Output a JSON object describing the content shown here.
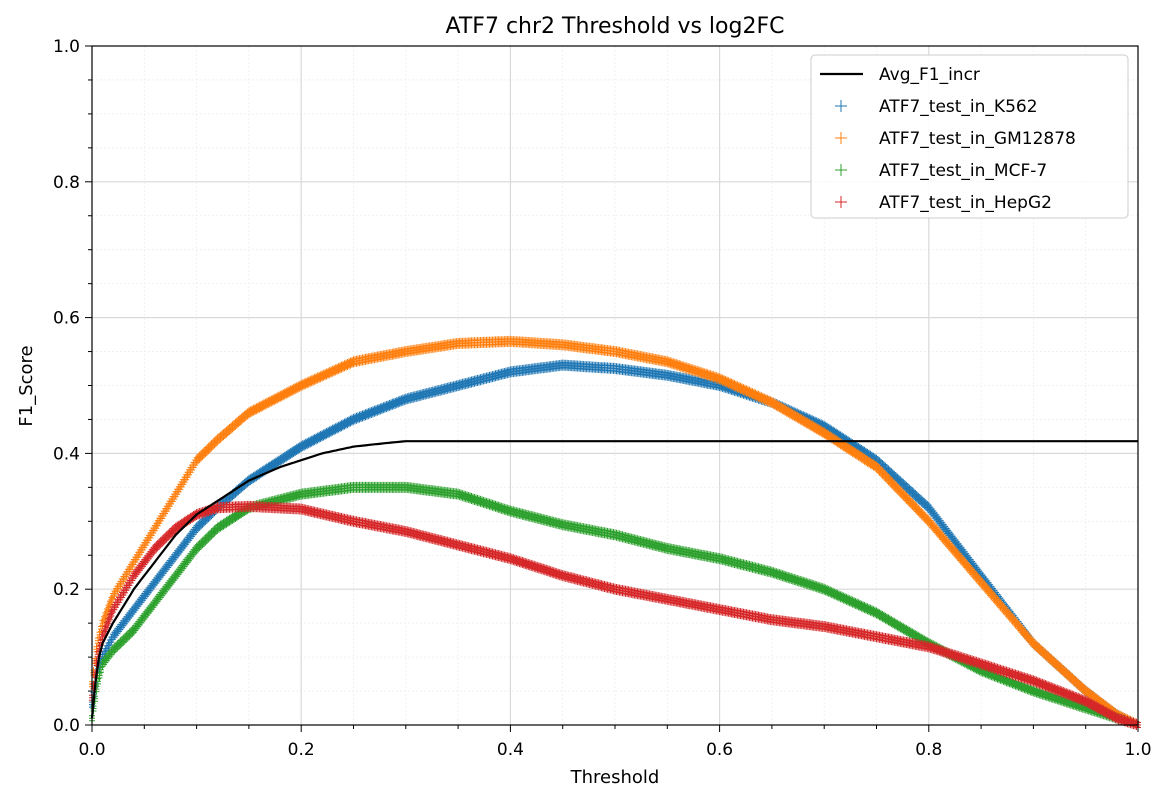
{
  "chart_data": {
    "type": "line",
    "title": "ATF7 chr2 Threshold vs log2FC",
    "xlabel": "Threshold",
    "ylabel": "F1_Score",
    "xlim": [
      0,
      1
    ],
    "ylim": [
      0,
      1
    ],
    "xticks": [
      "0.0",
      "0.2",
      "0.4",
      "0.6",
      "0.8",
      "1.0"
    ],
    "yticks": [
      "0.0",
      "0.2",
      "0.4",
      "0.6",
      "0.8",
      "1.0"
    ],
    "grid": true,
    "legend_position": "top-right",
    "series": [
      {
        "name": "Avg_F1_incr",
        "style": "line",
        "color": "#000000",
        "x": [
          0.0,
          0.005,
          0.01,
          0.02,
          0.04,
          0.06,
          0.08,
          0.1,
          0.12,
          0.15,
          0.18,
          0.2,
          0.22,
          0.25,
          0.28,
          0.3,
          0.35,
          0.4,
          0.5,
          0.6,
          0.7,
          0.8,
          0.9,
          1.0
        ],
        "y": [
          0.01,
          0.09,
          0.12,
          0.15,
          0.2,
          0.24,
          0.28,
          0.31,
          0.33,
          0.36,
          0.38,
          0.39,
          0.4,
          0.41,
          0.415,
          0.418,
          0.418,
          0.418,
          0.418,
          0.418,
          0.418,
          0.418,
          0.418,
          0.418
        ]
      },
      {
        "name": "ATF7_test_in_K562",
        "style": "markers",
        "color": "#1f77b4",
        "x": [
          0.0,
          0.005,
          0.01,
          0.02,
          0.04,
          0.06,
          0.08,
          0.1,
          0.12,
          0.15,
          0.2,
          0.25,
          0.3,
          0.35,
          0.4,
          0.45,
          0.5,
          0.55,
          0.6,
          0.65,
          0.7,
          0.75,
          0.8,
          0.85,
          0.9,
          0.95,
          0.98,
          1.0
        ],
        "y": [
          0.03,
          0.08,
          0.1,
          0.13,
          0.17,
          0.21,
          0.25,
          0.29,
          0.32,
          0.36,
          0.41,
          0.45,
          0.48,
          0.5,
          0.52,
          0.53,
          0.525,
          0.515,
          0.5,
          0.475,
          0.44,
          0.39,
          0.32,
          0.22,
          0.12,
          0.05,
          0.015,
          0.0
        ]
      },
      {
        "name": "ATF7_test_in_GM12878",
        "style": "markers",
        "color": "#ff7f0e",
        "x": [
          0.0,
          0.005,
          0.01,
          0.02,
          0.04,
          0.06,
          0.08,
          0.1,
          0.12,
          0.15,
          0.2,
          0.25,
          0.3,
          0.35,
          0.4,
          0.45,
          0.5,
          0.55,
          0.6,
          0.65,
          0.7,
          0.75,
          0.8,
          0.85,
          0.9,
          0.95,
          0.98,
          1.0
        ],
        "y": [
          0.06,
          0.12,
          0.15,
          0.19,
          0.24,
          0.29,
          0.34,
          0.39,
          0.42,
          0.46,
          0.5,
          0.535,
          0.55,
          0.562,
          0.565,
          0.56,
          0.55,
          0.535,
          0.51,
          0.475,
          0.43,
          0.38,
          0.3,
          0.21,
          0.12,
          0.05,
          0.015,
          0.0
        ]
      },
      {
        "name": "ATF7_test_in_MCF-7",
        "style": "markers",
        "color": "#2ca02c",
        "x": [
          0.0,
          0.005,
          0.01,
          0.02,
          0.04,
          0.06,
          0.08,
          0.1,
          0.12,
          0.15,
          0.2,
          0.25,
          0.3,
          0.35,
          0.4,
          0.45,
          0.5,
          0.55,
          0.6,
          0.65,
          0.7,
          0.75,
          0.8,
          0.85,
          0.9,
          0.95,
          0.98,
          1.0
        ],
        "y": [
          0.01,
          0.06,
          0.09,
          0.11,
          0.14,
          0.18,
          0.22,
          0.26,
          0.29,
          0.32,
          0.34,
          0.35,
          0.35,
          0.34,
          0.315,
          0.295,
          0.28,
          0.26,
          0.245,
          0.225,
          0.2,
          0.165,
          0.12,
          0.08,
          0.05,
          0.025,
          0.01,
          0.0
        ]
      },
      {
        "name": "ATF7_test_in_HepG2",
        "style": "markers",
        "color": "#d62728",
        "x": [
          0.0,
          0.005,
          0.01,
          0.02,
          0.04,
          0.06,
          0.08,
          0.1,
          0.12,
          0.15,
          0.2,
          0.25,
          0.3,
          0.35,
          0.4,
          0.45,
          0.5,
          0.55,
          0.6,
          0.65,
          0.7,
          0.75,
          0.8,
          0.85,
          0.9,
          0.95,
          0.98,
          1.0
        ],
        "y": [
          0.04,
          0.1,
          0.13,
          0.17,
          0.22,
          0.26,
          0.29,
          0.31,
          0.32,
          0.322,
          0.318,
          0.3,
          0.285,
          0.265,
          0.245,
          0.22,
          0.2,
          0.185,
          0.17,
          0.155,
          0.145,
          0.13,
          0.115,
          0.09,
          0.065,
          0.035,
          0.01,
          0.0
        ]
      }
    ]
  }
}
